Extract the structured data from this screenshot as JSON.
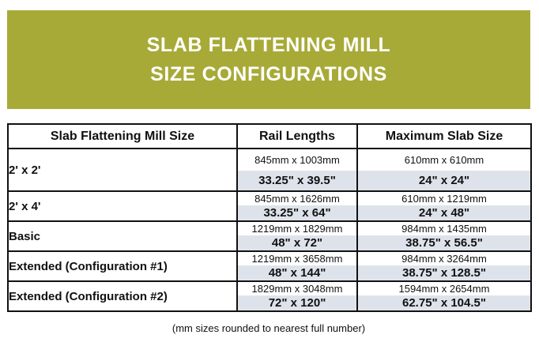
{
  "banner": {
    "title_line1": "SLAB FLATTENING MILL",
    "title_line2": "SIZE CONFIGURATIONS",
    "bg_color": "#a8aa38",
    "text_color": "#ffffff"
  },
  "table": {
    "headers": {
      "mill_size": "Slab Flattening Mill Size",
      "rail_lengths": "Rail Lengths",
      "max_slab_size": "Maximum Slab Size"
    },
    "shade_color": "#dee3eb",
    "rows": [
      {
        "label": "2' x 2'",
        "rail_mm": "845mm x 1003mm",
        "rail_in": "33.25\" x 39.5\"",
        "slab_mm": "610mm x 610mm",
        "slab_in": "24\" x 24\""
      },
      {
        "label": "2' x 4'",
        "rail_mm": "845mm x 1626mm",
        "rail_in": "33.25\" x 64\"",
        "slab_mm": "610mm x 1219mm",
        "slab_in": "24\" x 48\""
      },
      {
        "label": "Basic",
        "rail_mm": "1219mm x 1829mm",
        "rail_in": "48\" x 72\"",
        "slab_mm": "984mm x 1435mm",
        "slab_in": "38.75\" x 56.5\""
      },
      {
        "label": "Extended (Configuration #1)",
        "rail_mm": "1219mm x 3658mm",
        "rail_in": "48\" x 144\"",
        "slab_mm": "984mm x 3264mm",
        "slab_in": "38.75\" x 128.5\""
      },
      {
        "label": "Extended (Configuration #2)",
        "rail_mm": "1829mm x 3048mm",
        "rail_in": "72\" x 120\"",
        "slab_mm": "1594mm x 2654mm",
        "slab_in": "62.75\" x 104.5\""
      }
    ]
  },
  "footnote": "(mm sizes rounded to nearest full number)"
}
